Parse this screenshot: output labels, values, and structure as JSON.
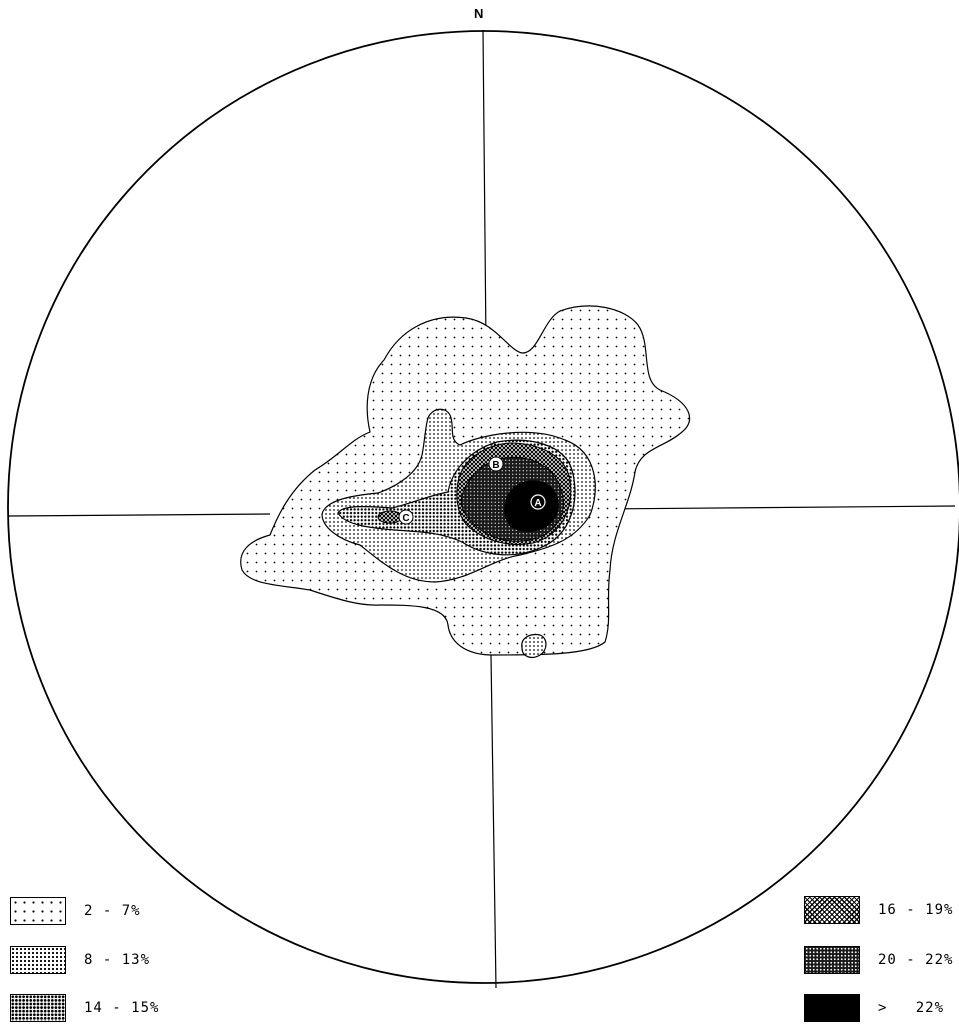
{
  "diagram": {
    "north_label": "N",
    "point_labels": [
      "A",
      "B",
      "C"
    ]
  },
  "legend": {
    "left": [
      {
        "label": "2 - 7%",
        "pattern": "sparse-dots"
      },
      {
        "label": "8 - 13%",
        "pattern": "fine-dots"
      },
      {
        "label": "14 - 15%",
        "pattern": "medium-dots"
      }
    ],
    "right": [
      {
        "label": "16 - 19%",
        "pattern": "crosshatch"
      },
      {
        "label": "20 - 22%",
        "pattern": "dark-dots"
      },
      {
        "label": ">   22%",
        "pattern": "solid-black"
      }
    ]
  },
  "colors": {
    "ink": "#000000",
    "paper": "#ffffff"
  }
}
